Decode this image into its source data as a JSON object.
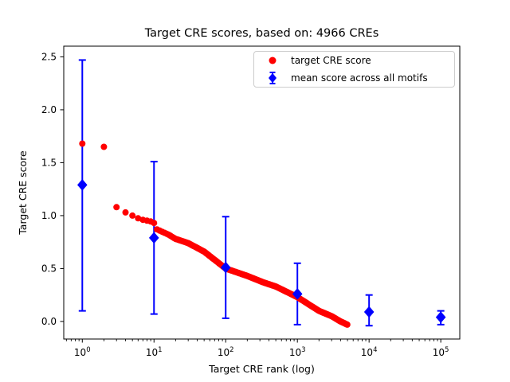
{
  "chart_data": {
    "type": "scatter",
    "title": "Target CRE scores, based on: 4966 CREs",
    "xlabel": "Target CRE rank (log)",
    "ylabel": "Target CRE score",
    "x_scale": "log",
    "grid": false,
    "legend_position": "upper right",
    "xlim": [
      0.551,
      184200
    ],
    "ylim": [
      -0.166,
      2.601
    ],
    "x_tick_base": "10",
    "x_tick_exponents": [
      "0",
      "1",
      "2",
      "3",
      "4",
      "5"
    ],
    "y_tick_labels": [
      "0.0",
      "0.5",
      "1.0",
      "1.5",
      "2.0",
      "2.5"
    ],
    "y_tick_values": [
      0,
      0.5,
      1,
      1.5,
      2,
      2.5
    ],
    "series": [
      {
        "name": "target CRE score",
        "type": "scatter",
        "marker": "circle",
        "color": "#ff0000",
        "n_cres": 4966,
        "rank_range": [
          1,
          4966
        ],
        "curve_log10_rank": [
          0.0,
          0.301,
          0.477,
          0.602,
          0.699,
          0.778,
          0.845,
          0.954,
          1.0,
          1.041,
          1.204,
          1.301,
          1.477,
          1.699,
          2.0,
          2.301,
          2.522,
          2.699,
          3.0,
          3.301,
          3.477,
          3.602,
          3.696
        ],
        "curve_score": [
          1.68,
          1.65,
          1.08,
          1.03,
          1.0,
          0.975,
          0.96,
          0.945,
          0.93,
          0.87,
          0.82,
          0.78,
          0.74,
          0.66,
          0.5,
          0.43,
          0.37,
          0.33,
          0.23,
          0.1,
          0.05,
          0.0,
          -0.03
        ]
      },
      {
        "name": "mean score across all motifs",
        "type": "errorbar",
        "marker": "diamond",
        "color": "#0000ff",
        "x": [
          1,
          10,
          100,
          1000,
          10000,
          100000
        ],
        "mean": [
          1.29,
          0.79,
          0.51,
          0.26,
          0.09,
          0.04
        ],
        "low": [
          0.1,
          0.07,
          0.03,
          -0.03,
          -0.04,
          -0.03
        ],
        "high": [
          2.47,
          1.51,
          0.99,
          0.55,
          0.25,
          0.1
        ]
      }
    ]
  }
}
